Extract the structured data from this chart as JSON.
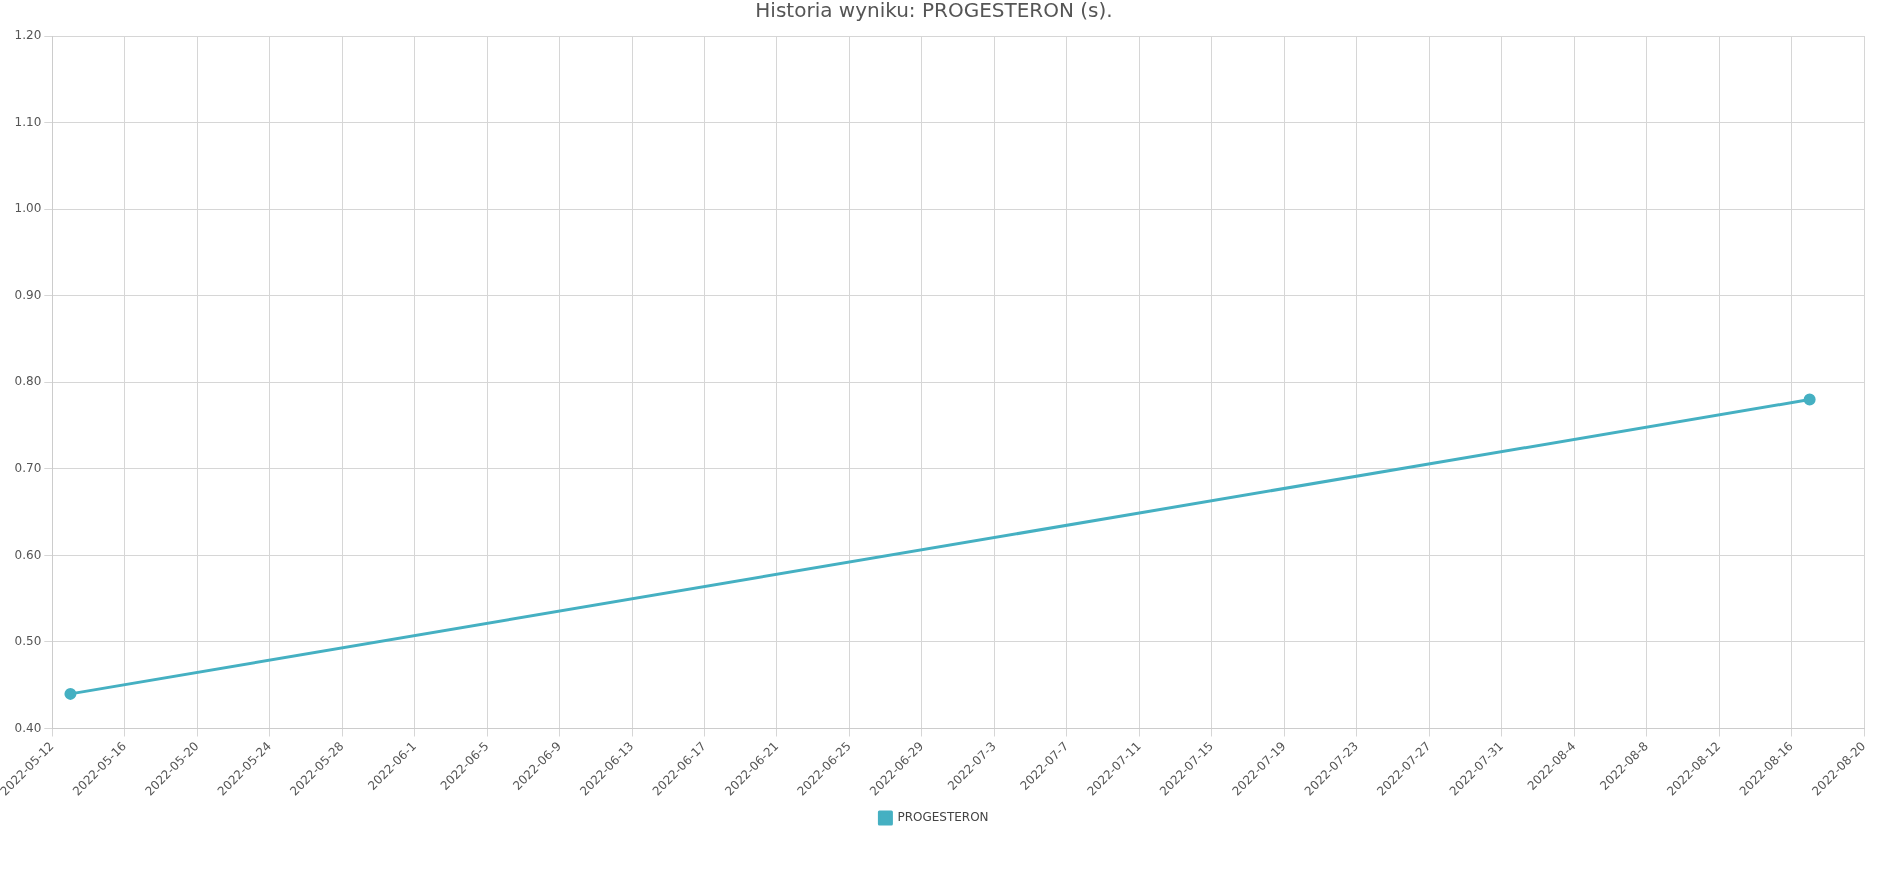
{
  "chart_data": {
    "type": "line",
    "title": "Historia wyniku: PROGESTERON (s).",
    "x": [
      "2022-05-13",
      "2022-08-17"
    ],
    "series": [
      {
        "name": "PROGESTERON",
        "color": "#45b0c2",
        "values": [
          0.44,
          0.78
        ]
      }
    ],
    "xlim": [
      "2022-05-12",
      "2022-08-20"
    ],
    "xticks": [
      {
        "value": "2022-05-12",
        "label": "2022-05-12"
      },
      {
        "value": "2022-05-16",
        "label": "2022-05-16"
      },
      {
        "value": "2022-05-20",
        "label": "2022-05-20"
      },
      {
        "value": "2022-05-24",
        "label": "2022-05-24"
      },
      {
        "value": "2022-05-28",
        "label": "2022-05-28"
      },
      {
        "value": "2022-06-01",
        "label": "2022-06-1"
      },
      {
        "value": "2022-06-05",
        "label": "2022-06-5"
      },
      {
        "value": "2022-06-09",
        "label": "2022-06-9"
      },
      {
        "value": "2022-06-13",
        "label": "2022-06-13"
      },
      {
        "value": "2022-06-17",
        "label": "2022-06-17"
      },
      {
        "value": "2022-06-21",
        "label": "2022-06-21"
      },
      {
        "value": "2022-06-25",
        "label": "2022-06-25"
      },
      {
        "value": "2022-06-29",
        "label": "2022-06-29"
      },
      {
        "value": "2022-07-03",
        "label": "2022-07-3"
      },
      {
        "value": "2022-07-07",
        "label": "2022-07-7"
      },
      {
        "value": "2022-07-11",
        "label": "2022-07-11"
      },
      {
        "value": "2022-07-15",
        "label": "2022-07-15"
      },
      {
        "value": "2022-07-19",
        "label": "2022-07-19"
      },
      {
        "value": "2022-07-23",
        "label": "2022-07-23"
      },
      {
        "value": "2022-07-27",
        "label": "2022-07-27"
      },
      {
        "value": "2022-07-31",
        "label": "2022-07-31"
      },
      {
        "value": "2022-08-04",
        "label": "2022-08-4"
      },
      {
        "value": "2022-08-08",
        "label": "2022-08-8"
      },
      {
        "value": "2022-08-12",
        "label": "2022-08-12"
      },
      {
        "value": "2022-08-16",
        "label": "2022-08-16"
      },
      {
        "value": "2022-08-20",
        "label": "2022-08-20"
      }
    ],
    "ylim": [
      0.4,
      1.2
    ],
    "yticks": [
      {
        "value": 0.4,
        "label": "0.40"
      },
      {
        "value": 0.5,
        "label": "0.50"
      },
      {
        "value": 0.6,
        "label": "0.60"
      },
      {
        "value": 0.7,
        "label": "0.70"
      },
      {
        "value": 0.8,
        "label": "0.80"
      },
      {
        "value": 0.9,
        "label": "0.90"
      },
      {
        "value": 1.0,
        "label": "1.00"
      },
      {
        "value": 1.1,
        "label": "1.10"
      },
      {
        "value": 1.2,
        "label": "1.20"
      }
    ],
    "grid": true,
    "legend": "bottom",
    "marker": "circle",
    "line_style": "solid"
  }
}
